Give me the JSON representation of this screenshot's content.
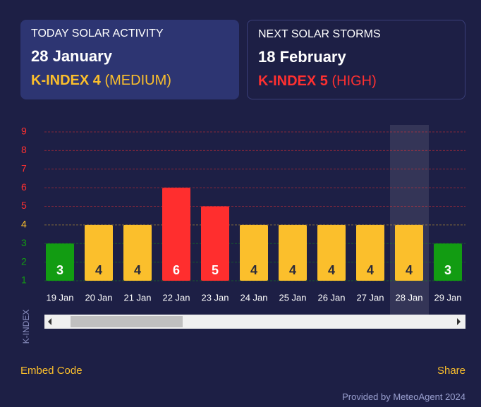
{
  "cards": [
    {
      "heading": "TODAY SOLAR ACTIVITY",
      "date": "28 January",
      "index": "K-INDEX 4",
      "level": "(MEDIUM)",
      "color": "#fbbf2c"
    },
    {
      "heading": "NEXT SOLAR STORMS",
      "date": "18 February",
      "index": "K-INDEX 5",
      "level": "(HIGH)",
      "color": "#ff3030"
    }
  ],
  "chart_data": {
    "type": "bar",
    "y_label": "K-INDEX",
    "categories": [
      "19 Jan",
      "20 Jan",
      "21 Jan",
      "22 Jan",
      "23 Jan",
      "24 Jan",
      "25 Jan",
      "26 Jan",
      "27 Jan",
      "28 Jan",
      "29 Jan"
    ],
    "values": [
      3,
      4,
      4,
      6,
      5,
      4,
      4,
      4,
      4,
      4,
      3
    ],
    "colors": [
      "#129c12",
      "#fbbf2c",
      "#fbbf2c",
      "#ff2e2e",
      "#ff2e2e",
      "#fbbf2c",
      "#fbbf2c",
      "#fbbf2c",
      "#fbbf2c",
      "#fbbf2c",
      "#129c12"
    ],
    "ylim": [
      1,
      9
    ],
    "yticks": [
      1,
      2,
      3,
      4,
      5,
      6,
      7,
      8,
      9
    ],
    "ytick_colors": [
      "#129c12",
      "#129c12",
      "#129c12",
      "#fbbf2c",
      "#ff3030",
      "#ff3030",
      "#ff3030",
      "#ff3030",
      "#ff3030"
    ],
    "highlighted_category": 9,
    "grid": true
  },
  "footer": {
    "embed": "Embed Code",
    "share": "Share",
    "credit": "Provided by MeteoAgent 2024"
  }
}
